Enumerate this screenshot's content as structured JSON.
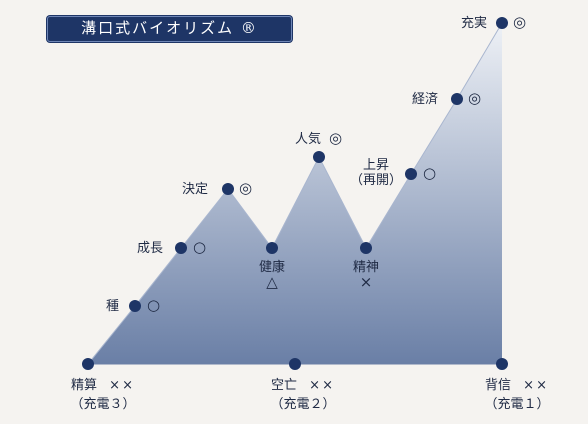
{
  "title": "溝口式バイオリズム ®",
  "colors": {
    "dot": "#1e3566",
    "fill_top": "#eef1f6",
    "fill_bottom": "#6a7fa6",
    "line": "#1e3566"
  },
  "nodes": {
    "seisan": {
      "label": "精算",
      "rating": "××",
      "sub": "（充電３）"
    },
    "tane": {
      "label": "種",
      "rating": "○"
    },
    "seichou": {
      "label": "成長",
      "rating": "○"
    },
    "kettei": {
      "label": "決定",
      "rating": "◎"
    },
    "kenkou": {
      "label": "健康",
      "rating": "△"
    },
    "ninki": {
      "label": "人気",
      "rating": "◎"
    },
    "seishin": {
      "label": "精神",
      "rating": "×"
    },
    "kuubou": {
      "label": "空亡",
      "rating": "××",
      "sub": "（充電２）"
    },
    "joushou": {
      "label": "上昇",
      "sub": "（再開）",
      "rating": "○"
    },
    "keizai": {
      "label": "経済",
      "rating": "◎"
    },
    "juujitsu": {
      "label": "充実",
      "rating": "◎"
    },
    "haishin": {
      "label": "背信",
      "rating": "××",
      "sub": "（充電１）"
    }
  }
}
